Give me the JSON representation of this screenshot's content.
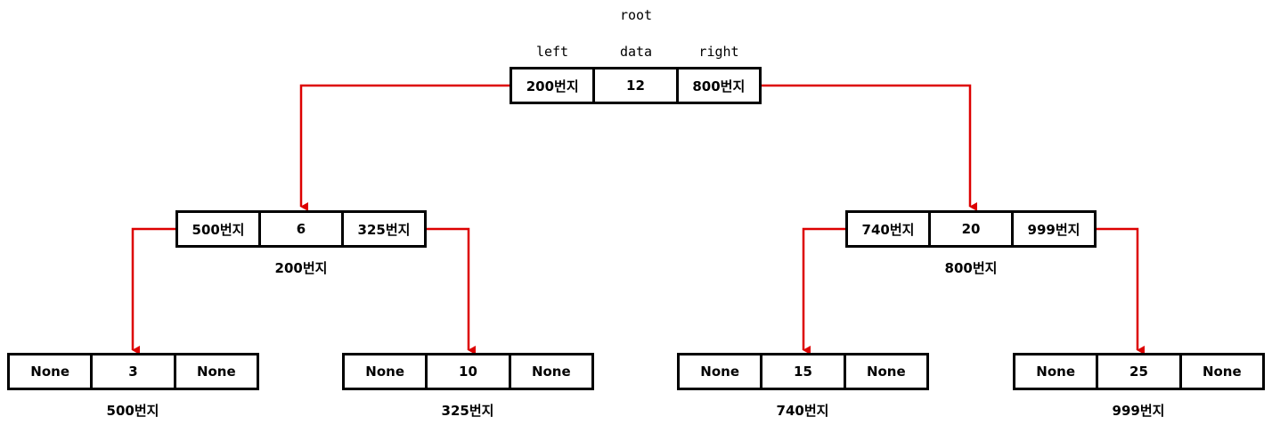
{
  "header": {
    "root": "root",
    "col_left": "left",
    "col_data": "data",
    "col_right": "right"
  },
  "colors": {
    "link": "#dd0000",
    "border": "#000000"
  },
  "nodes": {
    "root": {
      "left": "200번지",
      "data": "12",
      "right": "800번지"
    },
    "n200": {
      "left": "500번지",
      "data": "6",
      "right": "325번지",
      "address": "200번지"
    },
    "n800": {
      "left": "740번지",
      "data": "20",
      "right": "999번지",
      "address": "800번지"
    },
    "n500": {
      "left": "None",
      "data": "3",
      "right": "None",
      "address": "500번지"
    },
    "n325": {
      "left": "None",
      "data": "10",
      "right": "None",
      "address": "325번지"
    },
    "n740": {
      "left": "None",
      "data": "15",
      "right": "None",
      "address": "740번지"
    },
    "n999": {
      "left": "None",
      "data": "25",
      "right": "None",
      "address": "999번지"
    }
  }
}
